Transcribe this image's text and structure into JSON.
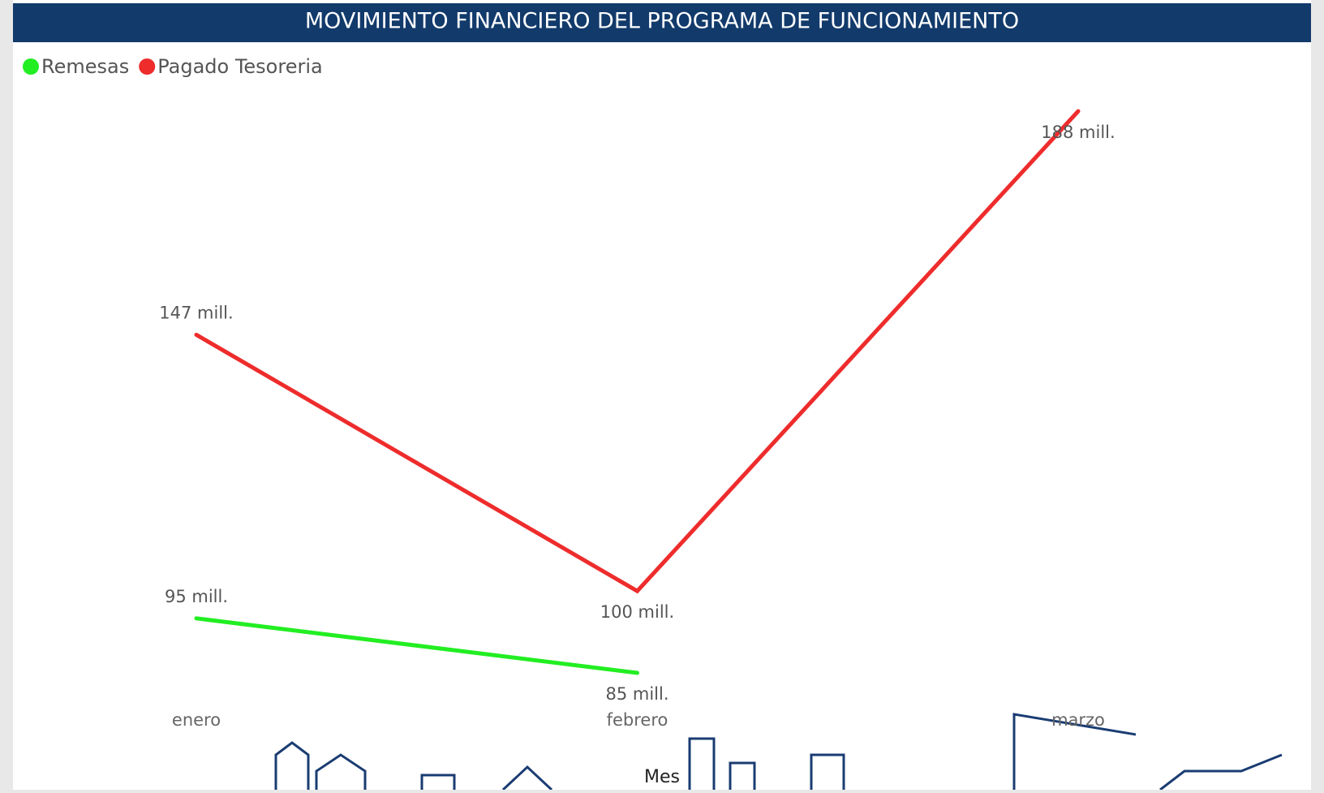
{
  "chart_data": {
    "type": "line",
    "title": "MOVIMIENTO FINANCIERO DEL PROGRAMA DE FUNCIONAMIENTO",
    "x_label": "Mes",
    "categories": [
      "enero",
      "febrero",
      "marzo"
    ],
    "series": [
      {
        "name": "Remesas",
        "color": "#22ee22",
        "values": [
          95,
          85,
          null
        ],
        "value_labels": [
          "95 mill.",
          "85 mill.",
          null
        ]
      },
      {
        "name": "Pagado Tesoreria",
        "color": "#ee2c2c",
        "values": [
          147,
          100,
          188
        ],
        "value_labels": [
          "147 mill.",
          "100 mill.",
          "188 mill."
        ]
      }
    ],
    "legend": "top-left"
  }
}
